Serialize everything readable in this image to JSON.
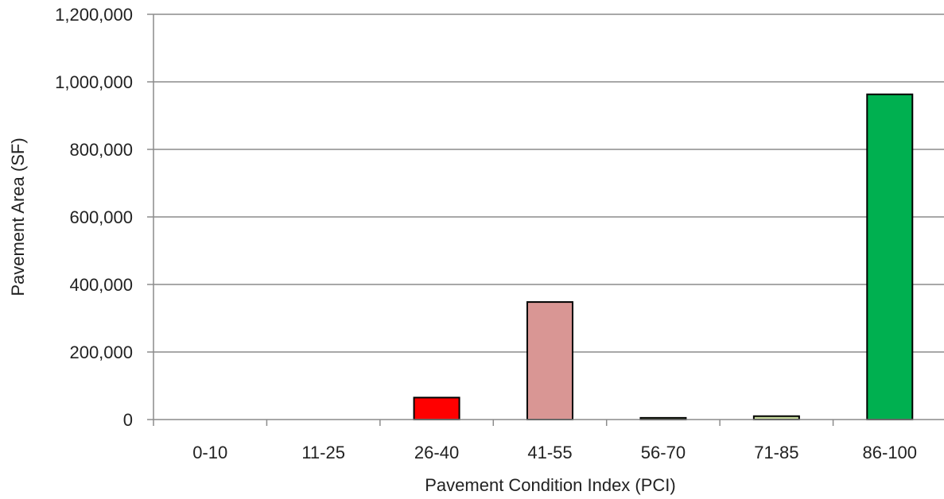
{
  "chart_data": {
    "type": "bar",
    "xlabel": "Pavement Condition Index (PCI)",
    "ylabel": "Pavement Area (SF)",
    "ylim": [
      0,
      1200000
    ],
    "yticks": [
      0,
      200000,
      400000,
      600000,
      800000,
      1000000,
      1200000
    ],
    "ytick_labels": [
      "0",
      "200,000",
      "400,000",
      "600,000",
      "800,000",
      "1,000,000",
      "1,200,000"
    ],
    "categories": [
      "0-10",
      "11-25",
      "26-40",
      "41-55",
      "56-70",
      "71-85",
      "86-100"
    ],
    "values": [
      0,
      0,
      65000,
      348000,
      5000,
      10000,
      963000
    ],
    "colors": [
      "#ffffff",
      "#ffffff",
      "#ff0000",
      "#d99694",
      "#92d050",
      "#c4d79b",
      "#00b050"
    ],
    "grid": true,
    "legend": "none"
  }
}
